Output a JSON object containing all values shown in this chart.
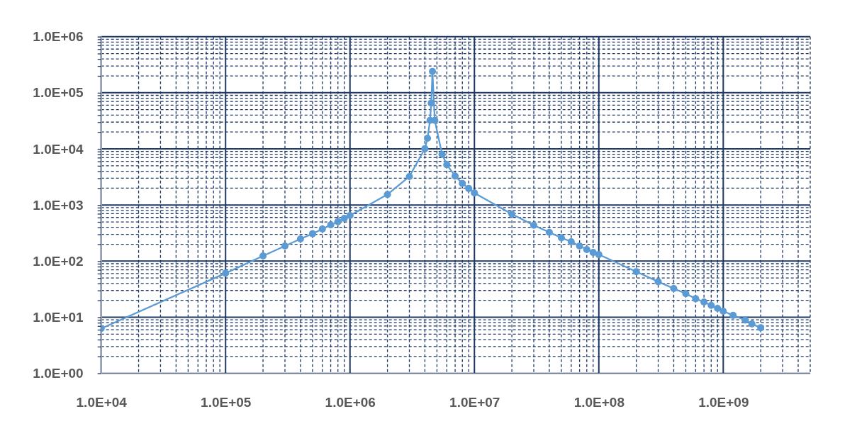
{
  "chart_data": {
    "type": "line",
    "log": "xy",
    "grid": true,
    "marker": "circle",
    "color": "#5b9bd5",
    "x": [
      10000,
      100000,
      200000,
      300000,
      400000,
      500000,
      600000,
      700000,
      800000,
      900000,
      1000000,
      2000000,
      3000000,
      4000000,
      4200000,
      4400000,
      4500000,
      4600000,
      4800000,
      5500000,
      6000000,
      7000000,
      8000000,
      9000000,
      10000000,
      20000000,
      30000000,
      40000000,
      50000000,
      60000000,
      70000000,
      80000000,
      90000000,
      100000000,
      200000000,
      300000000,
      400000000,
      500000000,
      600000000,
      700000000,
      800000000,
      900000000,
      1000000000,
      1200000000,
      1500000000,
      1700000000,
      2000000000
    ],
    "values": [
      6.3,
      61,
      124,
      186,
      249,
      308,
      374,
      442,
      505,
      578,
      650,
      1540,
      3220,
      10100,
      15500,
      32300,
      65700,
      240000,
      32300,
      8000,
      5230,
      3280,
      2430,
      1970,
      1640,
      690,
      436,
      326,
      261,
      222,
      186,
      161,
      143,
      131,
      65,
      43,
      32.5,
      26.3,
      21.4,
      18.7,
      16.3,
      14.4,
      12.8,
      10.8,
      8.9,
      7.6,
      6.5
    ],
    "xlim": [
      10000,
      5000000000
    ],
    "ylim": [
      1,
      1000000
    ],
    "xticks": [
      {
        "value": 10000,
        "label": "1.0E+04"
      },
      {
        "value": 20000,
        "label": null
      },
      {
        "value": 30000,
        "label": null
      },
      {
        "value": 40000,
        "label": null
      },
      {
        "value": 50000,
        "label": null
      },
      {
        "value": 60000,
        "label": null
      },
      {
        "value": 70000,
        "label": null
      },
      {
        "value": 80000,
        "label": null
      },
      {
        "value": 90000,
        "label": null
      },
      {
        "value": 100000,
        "label": "1.0E+05"
      },
      {
        "value": 200000,
        "label": null
      },
      {
        "value": 300000,
        "label": null
      },
      {
        "value": 400000,
        "label": null
      },
      {
        "value": 500000,
        "label": null
      },
      {
        "value": 600000,
        "label": null
      },
      {
        "value": 700000,
        "label": null
      },
      {
        "value": 800000,
        "label": null
      },
      {
        "value": 900000,
        "label": null
      },
      {
        "value": 1000000,
        "label": "1.0E+06"
      },
      {
        "value": 2000000,
        "label": null
      },
      {
        "value": 3000000,
        "label": null
      },
      {
        "value": 4000000,
        "label": null
      },
      {
        "value": 5000000,
        "label": null
      },
      {
        "value": 6000000,
        "label": null
      },
      {
        "value": 7000000,
        "label": null
      },
      {
        "value": 8000000,
        "label": null
      },
      {
        "value": 9000000,
        "label": null
      },
      {
        "value": 10000000,
        "label": "1.0E+07"
      },
      {
        "value": 20000000,
        "label": null
      },
      {
        "value": 30000000,
        "label": null
      },
      {
        "value": 40000000,
        "label": null
      },
      {
        "value": 50000000,
        "label": null
      },
      {
        "value": 60000000,
        "label": null
      },
      {
        "value": 70000000,
        "label": null
      },
      {
        "value": 80000000,
        "label": null
      },
      {
        "value": 90000000,
        "label": null
      },
      {
        "value": 100000000,
        "label": "1.0E+08"
      },
      {
        "value": 200000000,
        "label": null
      },
      {
        "value": 300000000,
        "label": null
      },
      {
        "value": 400000000,
        "label": null
      },
      {
        "value": 500000000,
        "label": null
      },
      {
        "value": 600000000,
        "label": null
      },
      {
        "value": 700000000,
        "label": null
      },
      {
        "value": 800000000,
        "label": null
      },
      {
        "value": 900000000,
        "label": null
      },
      {
        "value": 1000000000,
        "label": "1.0E+09"
      },
      {
        "value": 2000000000,
        "label": null
      },
      {
        "value": 3000000000,
        "label": null
      },
      {
        "value": 4000000000,
        "label": null
      },
      {
        "value": 5000000000,
        "label": null
      }
    ],
    "yticks": [
      {
        "value": 1,
        "label": "1.0E+00"
      },
      {
        "value": 2,
        "label": null
      },
      {
        "value": 3,
        "label": null
      },
      {
        "value": 4,
        "label": null
      },
      {
        "value": 5,
        "label": null
      },
      {
        "value": 6,
        "label": null
      },
      {
        "value": 7,
        "label": null
      },
      {
        "value": 8,
        "label": null
      },
      {
        "value": 9,
        "label": null
      },
      {
        "value": 10,
        "label": "1.0E+01"
      },
      {
        "value": 20,
        "label": null
      },
      {
        "value": 30,
        "label": null
      },
      {
        "value": 40,
        "label": null
      },
      {
        "value": 50,
        "label": null
      },
      {
        "value": 60,
        "label": null
      },
      {
        "value": 70,
        "label": null
      },
      {
        "value": 80,
        "label": null
      },
      {
        "value": 90,
        "label": null
      },
      {
        "value": 100,
        "label": "1.0E+02"
      },
      {
        "value": 200,
        "label": null
      },
      {
        "value": 300,
        "label": null
      },
      {
        "value": 400,
        "label": null
      },
      {
        "value": 500,
        "label": null
      },
      {
        "value": 600,
        "label": null
      },
      {
        "value": 700,
        "label": null
      },
      {
        "value": 800,
        "label": null
      },
      {
        "value": 900,
        "label": null
      },
      {
        "value": 1000,
        "label": "1.0E+03"
      },
      {
        "value": 2000,
        "label": null
      },
      {
        "value": 3000,
        "label": null
      },
      {
        "value": 4000,
        "label": null
      },
      {
        "value": 5000,
        "label": null
      },
      {
        "value": 6000,
        "label": null
      },
      {
        "value": 7000,
        "label": null
      },
      {
        "value": 8000,
        "label": null
      },
      {
        "value": 9000,
        "label": null
      },
      {
        "value": 10000,
        "label": "1.0E+04"
      },
      {
        "value": 20000,
        "label": null
      },
      {
        "value": 30000,
        "label": null
      },
      {
        "value": 40000,
        "label": null
      },
      {
        "value": 50000,
        "label": null
      },
      {
        "value": 60000,
        "label": null
      },
      {
        "value": 70000,
        "label": null
      },
      {
        "value": 80000,
        "label": null
      },
      {
        "value": 90000,
        "label": null
      },
      {
        "value": 100000,
        "label": "1.0E+05"
      },
      {
        "value": 200000,
        "label": null
      },
      {
        "value": 300000,
        "label": null
      },
      {
        "value": 400000,
        "label": null
      },
      {
        "value": 500000,
        "label": null
      },
      {
        "value": 600000,
        "label": null
      },
      {
        "value": 700000,
        "label": null
      },
      {
        "value": 800000,
        "label": null
      },
      {
        "value": 900000,
        "label": null
      },
      {
        "value": 1000000,
        "label": "1.0E+06"
      }
    ]
  }
}
